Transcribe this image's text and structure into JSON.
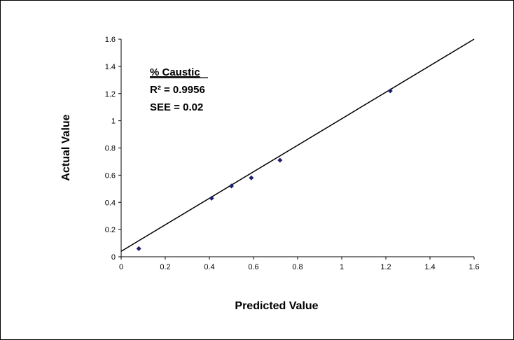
{
  "chart_data": {
    "type": "scatter",
    "xlabel": "Predicted Value",
    "ylabel": "Actual Value",
    "xlim": [
      0,
      1.6
    ],
    "ylim": [
      0,
      1.6
    ],
    "xticks": [
      "0",
      "0.2",
      "0.4",
      "0.6",
      "0.8",
      "1",
      "1.2",
      "1.4",
      "1.6"
    ],
    "yticks": [
      "0",
      "0.2",
      "0.4",
      "0.6",
      "0.8",
      "1",
      "1.2",
      "1.4",
      "1.6"
    ],
    "grid": false,
    "series": [
      {
        "x": [
          0.08,
          0.41,
          0.5,
          0.59,
          0.72,
          1.22
        ],
        "y": [
          0.06,
          0.43,
          0.52,
          0.58,
          0.71,
          1.22
        ],
        "color": "#1f1f6e",
        "marker": "diamond"
      }
    ],
    "fit_line": {
      "x": [
        0,
        1.6
      ],
      "y": [
        0.04,
        1.6
      ],
      "color": "#000000"
    },
    "annotation": {
      "title": "% Caustic",
      "r2": "R² = 0.9956",
      "see": "SEE = 0.02"
    }
  }
}
